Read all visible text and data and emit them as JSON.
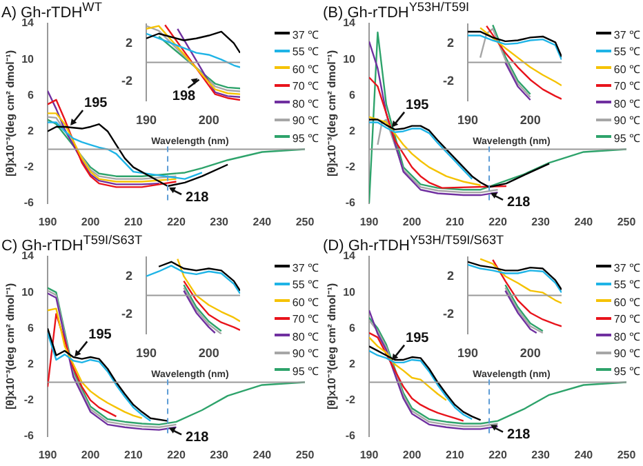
{
  "chart_data": [
    {
      "type": "line",
      "title": "A) Gh-rTDH$^{WT}$",
      "xlabel": "Wavelength (nm)",
      "ylabel": "[θ]x10⁻³(deg cm² dmol⁻¹)",
      "legend": "top right",
      "xlim": [
        190,
        250
      ],
      "ylim": [
        -6,
        14
      ],
      "xticks": [
        190,
        200,
        210,
        220,
        230,
        240,
        250
      ],
      "yticks": [
        -6,
        -2,
        2,
        6,
        10,
        14
      ],
      "series": [
        {
          "name": "37 ℃",
          "color": "#000000",
          "x": [
            190,
            192,
            194,
            198,
            200,
            202,
            204,
            206,
            208,
            210,
            218,
            222,
            226,
            232
          ],
          "values": [
            2,
            2.5,
            2.5,
            2.3,
            2.5,
            2.8,
            2,
            0.5,
            -1,
            -2,
            -4.1,
            -3.7,
            -3,
            -1.7
          ]
        },
        {
          "name": "55 ℃",
          "color": "#1fb4e6",
          "x": [
            190,
            192,
            194,
            196,
            198,
            200,
            202,
            204,
            206,
            208,
            210,
            222,
            226
          ],
          "values": [
            3,
            3,
            2,
            1.2,
            0.8,
            0.5,
            0.2,
            0,
            -0.5,
            -1.5,
            -2.5,
            -3.3,
            -2.6
          ]
        },
        {
          "name": "60 ℃",
          "color": "#f5c200",
          "x": [
            190,
            192,
            194,
            198,
            200,
            202,
            206,
            212,
            220
          ],
          "values": [
            4,
            4,
            2.8,
            -1,
            -2.5,
            -3.3,
            -3.6,
            -3.6,
            -3.3
          ]
        },
        {
          "name": "70 ℃",
          "color": "#e8141c",
          "x": [
            190,
            192,
            194,
            198,
            200,
            202,
            206,
            212,
            220
          ],
          "values": [
            5,
            5.5,
            3.3,
            -1.5,
            -3,
            -3.8,
            -4.2,
            -4.2,
            -3.6
          ]
        },
        {
          "name": "80 ℃",
          "color": "#7030a0",
          "x": [
            190,
            192,
            194,
            198,
            200,
            202,
            206,
            212,
            216
          ],
          "values": [
            6.5,
            4.5,
            2.2,
            -1.3,
            -2.8,
            -3.5,
            -3.9,
            -3.9,
            -3.8
          ]
        },
        {
          "name": "90 ℃",
          "color": "#a6a6a6",
          "x": [
            190,
            192,
            200,
            202,
            206,
            212,
            220
          ],
          "values": [
            3.6,
            3.5,
            -2.3,
            -3,
            -3.3,
            -3.3,
            -3
          ]
        },
        {
          "name": "95 ℃",
          "color": "#2ea36b",
          "x": [
            190,
            192,
            200,
            202,
            206,
            212,
            222,
            226,
            232,
            240,
            250
          ],
          "values": [
            3.3,
            2.8,
            -2,
            -2.7,
            -3,
            -3,
            -2.6,
            -2.1,
            -1.2,
            -0.3,
            0
          ]
        }
      ],
      "ref_lines": [
        {
          "axis": "y",
          "value": 0,
          "color": "#999999",
          "line_style": "solid"
        },
        {
          "axis": "x",
          "value": 218,
          "color": "#5b9bd5",
          "line_style": "dashed"
        }
      ],
      "annotations": [
        {
          "text": "195",
          "x": 195,
          "y": 2.5
        },
        {
          "text": "218",
          "x": 218,
          "y": -4.1
        }
      ]
    },
    {
      "type": "line",
      "xlim": [
        190,
        205
      ],
      "ylim": [
        -4,
        4
      ],
      "xticks": [
        190,
        200
      ],
      "yticks": [
        -2,
        2
      ],
      "series": [
        {
          "color": "#000000",
          "x": [
            190,
            192,
            196,
            198,
            200,
            202,
            204,
            205
          ],
          "values": [
            2.5,
            3,
            2.3,
            2.5,
            2.8,
            3.2,
            2,
            1
          ]
        },
        {
          "color": "#1fb4e6",
          "x": [
            190,
            192,
            194,
            196,
            198,
            200,
            202,
            204,
            205
          ],
          "values": [
            3,
            2.5,
            2,
            1.5,
            1,
            0.8,
            0.3,
            -0.3,
            -0.5
          ]
        },
        {
          "color": "#f5c200",
          "x": [
            190,
            192,
            201,
            203,
            205
          ],
          "values": [
            3.5,
            3.8,
            -2.8,
            -3.2,
            -3.3
          ]
        },
        {
          "color": "#e8141c",
          "x": [
            193,
            201,
            203,
            205
          ],
          "values": [
            3.9,
            -3.3,
            -3.7,
            -3.9
          ]
        },
        {
          "color": "#7030a0",
          "x": [
            195,
            201,
            203,
            205
          ],
          "values": [
            3.5,
            -3.1,
            -3.5,
            -3.6
          ]
        },
        {
          "color": "#a6a6a6",
          "x": [
            190,
            192,
            201,
            203,
            205
          ],
          "values": [
            3.8,
            3.3,
            -2.5,
            -2.9,
            -3
          ]
        },
        {
          "color": "#2ea36b",
          "x": [
            192,
            201,
            203,
            205
          ],
          "values": [
            2.7,
            -2.2,
            -2.6,
            -2.7
          ]
        }
      ],
      "ref_lines": [
        {
          "axis": "y",
          "value": 0,
          "color": "#999999",
          "line_style": "solid"
        }
      ],
      "annotations": [
        {
          "text": "198",
          "x": 198,
          "y": -1.5
        }
      ]
    },
    {
      "type": "line",
      "title": "(B) Gh-rTDH$^{Y53H/T59I}$",
      "xlabel": "Wavelength (nm)",
      "ylabel": "[θ]x10⁻³(deg cm² dmol⁻¹)",
      "legend": "top right",
      "xlim": [
        190,
        250
      ],
      "ylim": [
        -6,
        14
      ],
      "xticks": [
        190,
        200,
        210,
        220,
        230,
        240,
        250
      ],
      "yticks": [
        -6,
        -2,
        2,
        6,
        10,
        14
      ],
      "series": [
        {
          "name": "37 ℃",
          "color": "#000000",
          "x": [
            190,
            192,
            194,
            196,
            198,
            200,
            202,
            204,
            206,
            208,
            210,
            212,
            214,
            216,
            218,
            222,
            226,
            232
          ],
          "values": [
            3.3,
            3.3,
            2.7,
            2.2,
            2.3,
            2.6,
            2.6,
            2.1,
            1,
            0,
            -1,
            -2,
            -3,
            -3.7,
            -4.2,
            -3.8,
            -2.9,
            -1.6
          ]
        },
        {
          "name": "55 ℃",
          "color": "#1fb4e6",
          "x": [
            190,
            192,
            194,
            196,
            198,
            200,
            202,
            204,
            206,
            208,
            210,
            212,
            214
          ],
          "values": [
            3,
            3,
            2.4,
            1.9,
            2,
            2.3,
            2.3,
            1.8,
            0.7,
            -0.3,
            -1.3,
            -2.3,
            -3.3
          ]
        },
        {
          "name": "60 ℃",
          "color": "#f5c200",
          "x": [
            190,
            194,
            198,
            200,
            202,
            204,
            206,
            208,
            210,
            212,
            216
          ],
          "values": [
            3.6,
            3,
            0.5,
            -0.5,
            -1.3,
            -2,
            -2.5,
            -3,
            -3.3,
            -3.6,
            -4
          ]
        },
        {
          "name": "70 ℃",
          "color": "#e8141c",
          "x": [
            190,
            192,
            196,
            198,
            200,
            202,
            204,
            207,
            222
          ],
          "values": [
            8,
            7,
            1,
            -0.5,
            -2,
            -3,
            -3.7,
            -4.3,
            -4.1
          ]
        },
        {
          "name": "80 ℃",
          "color": "#7030a0",
          "x": [
            190,
            192,
            194,
            198,
            202,
            206,
            212,
            216,
            220
          ],
          "values": [
            12,
            9,
            4,
            -2.5,
            -4.5,
            -4.9,
            -5.1,
            -5.1,
            -4.8
          ]
        },
        {
          "name": "90 ℃",
          "color": "#a6a6a6",
          "x": [
            192,
            193,
            194,
            198,
            202,
            206,
            212,
            216,
            220
          ],
          "values": [
            0.5,
            3,
            3.3,
            -2.3,
            -4.2,
            -4.6,
            -4.8,
            -4.8,
            -4.5
          ]
        },
        {
          "name": "95 ℃",
          "color": "#2ea36b",
          "x": [
            190,
            192,
            194,
            198,
            202,
            206,
            212,
            216,
            226,
            232,
            240,
            250
          ],
          "values": [
            -6,
            13,
            5,
            -2,
            -3.9,
            -4.3,
            -4.5,
            -4.5,
            -2.8,
            -1.5,
            -0.3,
            0
          ]
        }
      ],
      "ref_lines": [
        {
          "axis": "y",
          "value": 0,
          "color": "#999999",
          "line_style": "solid"
        },
        {
          "axis": "x",
          "value": 218,
          "color": "#5b9bd5",
          "line_style": "dashed"
        }
      ],
      "annotations": [
        {
          "text": "195",
          "x": 195,
          "y": 2.3
        },
        {
          "text": "218",
          "x": 218,
          "y": -4.7
        }
      ]
    },
    {
      "type": "line",
      "xlim": [
        190,
        205
      ],
      "ylim": [
        -4,
        4
      ],
      "xticks": [
        190,
        200
      ],
      "yticks": [
        -2,
        2
      ],
      "series": [
        {
          "color": "#000000",
          "x": [
            190,
            192,
            194,
            196,
            198,
            200,
            202,
            204,
            205
          ],
          "values": [
            3.2,
            3.2,
            2.6,
            2.2,
            2.3,
            2.6,
            2.7,
            2.1,
            0.6
          ]
        },
        {
          "color": "#1fb4e6",
          "x": [
            190,
            192,
            194,
            196,
            198,
            200,
            202,
            204,
            205
          ],
          "values": [
            2.8,
            2.8,
            2.3,
            1.9,
            2,
            2.3,
            2.4,
            1.8,
            0.3
          ]
        },
        {
          "color": "#f5c200",
          "x": [
            192,
            196,
            198,
            200,
            202,
            204,
            205
          ],
          "values": [
            3.6,
            1.5,
            0.5,
            -0.5,
            -1.3,
            -2,
            -2.4
          ]
        },
        {
          "color": "#e8141c",
          "x": [
            193,
            196,
            198,
            200,
            202,
            204,
            205
          ],
          "values": [
            3.8,
            1,
            -0.5,
            -1.8,
            -2.8,
            -3.5,
            -3.8
          ]
        },
        {
          "color": "#7030a0",
          "x": [
            196,
            198,
            200
          ],
          "values": [
            0,
            -2.5,
            -3.9
          ]
        },
        {
          "color": "#a6a6a6",
          "x": [
            192,
            193,
            194,
            196,
            198,
            200
          ],
          "values": [
            0.5,
            3,
            3.5,
            0.3,
            -2.2,
            -3.6
          ]
        },
        {
          "color": "#2ea36b",
          "x": [
            194,
            196,
            198,
            200
          ],
          "values": [
            3.9,
            0.6,
            -1.9,
            -3.3
          ]
        }
      ],
      "ref_lines": [
        {
          "axis": "y",
          "value": 0,
          "color": "#999999",
          "line_style": "solid"
        }
      ]
    },
    {
      "type": "line",
      "title": "C) Gh-rTDH$^{T59I/S63T}$",
      "xlabel": "Wavelength (nm)",
      "ylabel": "[θ]x10⁻³(deg cm² dmol⁻¹)",
      "legend": "top right",
      "xlim": [
        190,
        250
      ],
      "ylim": [
        -6,
        14
      ],
      "xticks": [
        190,
        200,
        210,
        220,
        230,
        240,
        250
      ],
      "yticks": [
        -6,
        -2,
        2,
        6,
        10,
        14
      ],
      "series": [
        {
          "name": "37 ℃",
          "color": "#000000",
          "x": [
            190,
            192,
            194,
            196,
            198,
            200,
            202,
            204,
            206,
            208,
            210,
            212,
            214,
            218
          ],
          "values": [
            6,
            3,
            3.5,
            2.8,
            2.6,
            2.8,
            2.6,
            1.5,
            0,
            -1.3,
            -2.5,
            -3.3,
            -4,
            -4.3
          ]
        },
        {
          "name": "55 ℃",
          "color": "#1fb4e6",
          "x": [
            190,
            192,
            194,
            196,
            198,
            200,
            202,
            204,
            206,
            208,
            210,
            212,
            214
          ],
          "values": [
            5.5,
            2.5,
            3.1,
            2.4,
            2.2,
            2.5,
            2.3,
            1.2,
            -0.3,
            -1.6,
            -2.8,
            -3.6,
            -4.3
          ]
        },
        {
          "name": "60 ℃",
          "color": "#f5c200",
          "x": [
            190,
            192,
            194,
            196,
            198,
            200,
            202,
            204,
            206,
            208,
            210,
            212
          ],
          "values": [
            8,
            8.2,
            4,
            2,
            0,
            -1,
            -1.7,
            -2.3,
            -2.8,
            -3.3,
            -3.7,
            -4
          ]
        },
        {
          "name": "70 ℃",
          "color": "#e8141c",
          "x": [
            190,
            192,
            196,
            198,
            200,
            202,
            204,
            206
          ],
          "values": [
            -0.5,
            7.6,
            1.6,
            -0.5,
            -2,
            -2.8,
            -3.3,
            -3.8
          ]
        },
        {
          "name": "80 ℃",
          "color": "#7030a0",
          "x": [
            190,
            192,
            196,
            200,
            204,
            208,
            212,
            216,
            220
          ],
          "values": [
            9.9,
            9.4,
            0.6,
            -3.3,
            -4.7,
            -5,
            -5.2,
            -5.3,
            -5
          ]
        },
        {
          "name": "90 ℃",
          "color": "#a6a6a6",
          "x": [
            190,
            192,
            196,
            200,
            204,
            208,
            212,
            216,
            220
          ],
          "values": [
            10.2,
            9.7,
            0.9,
            -3,
            -4.4,
            -4.7,
            -4.9,
            -5,
            -4.7
          ]
        },
        {
          "name": "95 ℃",
          "color": "#2ea36b",
          "x": [
            190,
            192,
            196,
            200,
            204,
            208,
            212,
            216,
            220,
            226,
            232,
            240,
            250
          ],
          "values": [
            10.5,
            10,
            1.2,
            -2.7,
            -4.1,
            -4.4,
            -4.6,
            -4.7,
            -4.4,
            -3.1,
            -1.5,
            -0.3,
            0
          ]
        }
      ],
      "ref_lines": [
        {
          "axis": "y",
          "value": 0,
          "color": "#999999",
          "line_style": "solid"
        },
        {
          "axis": "x",
          "value": 218,
          "color": "#5b9bd5",
          "line_style": "dashed"
        }
      ],
      "annotations": [
        {
          "text": "195",
          "x": 196,
          "y": 2.7
        },
        {
          "text": "218",
          "x": 218,
          "y": -4.9
        }
      ]
    },
    {
      "type": "line",
      "xlim": [
        190,
        205
      ],
      "ylim": [
        -4,
        4
      ],
      "xticks": [
        190,
        200
      ],
      "yticks": [
        -2,
        2
      ],
      "series": [
        {
          "color": "#000000",
          "x": [
            192,
            194,
            196,
            198,
            200,
            202,
            204,
            205
          ],
          "values": [
            3,
            3.5,
            2.8,
            2.6,
            2.8,
            2.6,
            1.5,
            0.5
          ]
        },
        {
          "color": "#1fb4e6",
          "x": [
            190,
            192,
            194,
            196,
            198,
            200,
            202,
            204,
            205
          ],
          "values": [
            2,
            2.5,
            3.1,
            2.4,
            2.2,
            2.5,
            2.3,
            1.2,
            0.2
          ]
        },
        {
          "color": "#f5c200",
          "x": [
            195,
            196,
            198,
            200,
            202,
            204,
            205
          ],
          "values": [
            3.8,
            2,
            0,
            -1,
            -1.7,
            -2.3,
            -2.7
          ]
        },
        {
          "color": "#e8141c",
          "x": [
            196,
            198,
            200,
            202,
            204,
            205
          ],
          "values": [
            1.5,
            -0.5,
            -2,
            -2.8,
            -3.3,
            -3.6
          ]
        },
        {
          "color": "#7030a0",
          "x": [
            196,
            198,
            200,
            201
          ],
          "values": [
            0.5,
            -1.8,
            -3.3,
            -3.9
          ]
        },
        {
          "color": "#a6a6a6",
          "x": [
            196,
            198,
            200,
            202
          ],
          "values": [
            0.8,
            -1.5,
            -3,
            -4
          ]
        },
        {
          "color": "#2ea36b",
          "x": [
            196,
            198,
            200,
            202
          ],
          "values": [
            1.1,
            -1.2,
            -2.7,
            -3.7
          ]
        }
      ],
      "ref_lines": [
        {
          "axis": "y",
          "value": 0,
          "color": "#999999",
          "line_style": "solid"
        }
      ]
    },
    {
      "type": "line",
      "title": "(D) Gh-rTDH$^{Y53H/T59I/S63T}$",
      "xlabel": "Wavelength (nm)",
      "ylabel": "[θ]x10⁻³(deg cm² dmol⁻¹)",
      "legend": "top right",
      "xlim": [
        190,
        250
      ],
      "ylim": [
        -6,
        14
      ],
      "xticks": [
        190,
        200,
        210,
        220,
        230,
        240,
        250
      ],
      "yticks": [
        -6,
        -2,
        2,
        6,
        10,
        14
      ],
      "series": [
        {
          "name": "37 ℃",
          "color": "#000000",
          "x": [
            190,
            192,
            194,
            196,
            198,
            200,
            202,
            204,
            206,
            208,
            210,
            212,
            214,
            216
          ],
          "values": [
            4,
            3.5,
            3,
            2.5,
            2.5,
            2.8,
            2.7,
            1.5,
            0,
            -1.3,
            -2.5,
            -3.3,
            -3.8,
            -4.2
          ]
        },
        {
          "name": "55 ℃",
          "color": "#1fb4e6",
          "x": [
            190,
            192,
            194,
            196,
            198,
            200,
            202,
            204,
            206,
            208,
            210,
            212,
            214
          ],
          "values": [
            3.5,
            3,
            2.7,
            2.2,
            2.2,
            2.5,
            2.4,
            1.2,
            -0.3,
            -1.6,
            -2.8,
            -3.6,
            -4.1
          ]
        },
        {
          "name": "60 ℃",
          "color": "#f5c200",
          "x": [
            190,
            192,
            194,
            196,
            198,
            200,
            202,
            204,
            206,
            208
          ],
          "values": [
            5,
            4,
            3.3,
            2,
            1.3,
            0.5,
            0.3,
            -0.5,
            -1.3,
            -2
          ]
        },
        {
          "name": "70 ℃",
          "color": "#e8141c",
          "x": [
            190,
            192,
            198,
            200,
            202,
            204,
            206,
            208,
            210,
            212
          ],
          "values": [
            5.5,
            5,
            -0.5,
            -1.8,
            -2.5,
            -3,
            -3.4,
            -3.7,
            -4,
            -4.3
          ]
        },
        {
          "name": "80 ℃",
          "color": "#7030a0",
          "x": [
            190,
            192,
            194,
            196,
            198,
            200,
            204,
            208,
            212,
            216,
            220
          ],
          "values": [
            8,
            5.4,
            3.6,
            0.9,
            -1.8,
            -3.5,
            -4.7,
            -5,
            -5.2,
            -5.2,
            -4.9
          ]
        },
        {
          "name": "90 ℃",
          "color": "#a6a6a6",
          "x": [
            190,
            192,
            194,
            196,
            198,
            200,
            204,
            208,
            212,
            216,
            220
          ],
          "values": [
            6.9,
            5.7,
            3.9,
            1.2,
            -1.5,
            -3.2,
            -4.4,
            -4.7,
            -4.9,
            -4.9,
            -4.6
          ]
        },
        {
          "name": "95 ℃",
          "color": "#2ea36b",
          "x": [
            190,
            192,
            194,
            196,
            198,
            200,
            204,
            208,
            212,
            216,
            220,
            226,
            232,
            240,
            250
          ],
          "values": [
            7.2,
            6,
            4.2,
            1.5,
            -1.2,
            -2.9,
            -4.1,
            -4.4,
            -4.6,
            -4.6,
            -4.3,
            -3,
            -1.4,
            -0.3,
            0
          ]
        }
      ],
      "ref_lines": [
        {
          "axis": "y",
          "value": 0,
          "color": "#999999",
          "line_style": "solid"
        },
        {
          "axis": "x",
          "value": 218,
          "color": "#5b9bd5",
          "line_style": "dashed"
        }
      ],
      "annotations": [
        {
          "text": "195",
          "x": 195,
          "y": 2.3
        },
        {
          "text": "218",
          "x": 218,
          "y": -4.6
        }
      ]
    },
    {
      "type": "line",
      "xlim": [
        190,
        205
      ],
      "ylim": [
        -4,
        4
      ],
      "xticks": [
        190,
        200
      ],
      "yticks": [
        -2,
        2
      ],
      "series": [
        {
          "color": "#000000",
          "x": [
            190,
            192,
            194,
            196,
            198,
            200,
            202,
            204,
            205
          ],
          "values": [
            3.5,
            3.1,
            2.9,
            2.6,
            2.6,
            2.9,
            2.8,
            1.6,
            0.6
          ]
        },
        {
          "color": "#1fb4e6",
          "x": [
            190,
            192,
            194,
            196,
            198,
            200,
            202,
            204,
            205
          ],
          "values": [
            3.2,
            2.8,
            2.6,
            2.3,
            2.3,
            2.6,
            2.5,
            1.3,
            0.3
          ]
        },
        {
          "color": "#f5c200",
          "x": [
            192,
            194,
            196,
            198,
            200,
            202,
            204,
            205
          ],
          "values": [
            3.8,
            3.3,
            2,
            1.3,
            0.5,
            0.3,
            -0.5,
            -0.8
          ]
        },
        {
          "color": "#e8141c",
          "x": [
            194,
            196,
            198,
            200,
            202,
            204,
            205
          ],
          "values": [
            3.7,
            1.5,
            -0.5,
            -1.8,
            -2.5,
            -3,
            -3.2
          ]
        },
        {
          "color": "#7030a0",
          "x": [
            196,
            198,
            200,
            201
          ],
          "values": [
            0.5,
            -1.8,
            -3.5,
            -3.9
          ]
        },
        {
          "color": "#a6a6a6",
          "x": [
            196,
            198,
            200,
            202
          ],
          "values": [
            0.8,
            -1.5,
            -3.2,
            -3.9
          ]
        },
        {
          "color": "#2ea36b",
          "x": [
            196,
            198,
            200,
            202
          ],
          "values": [
            1.1,
            -1.2,
            -2.9,
            -3.7
          ]
        }
      ],
      "ref_lines": [
        {
          "axis": "y",
          "value": 0,
          "color": "#999999",
          "line_style": "solid"
        }
      ]
    }
  ]
}
